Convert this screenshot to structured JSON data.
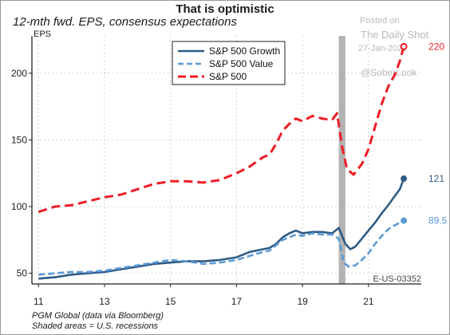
{
  "title": "That is optimistic",
  "subtitle": "12-mth fwd. EPS, consensus expectations",
  "y_unit": "EPS",
  "chart_id": "E-US-03352",
  "footer": {
    "source": "PGM Global (data via Bloomberg)",
    "shading_note": "Shaded areas = U.S. recessions"
  },
  "watermark": {
    "posted": "Posted on",
    "site": "The Daily Shot",
    "date": "27-Jan-2022",
    "handle": "@SoberLook"
  },
  "colors": {
    "growth": "#2f5b86",
    "value": "#5b9bd5",
    "sp500": "#ee1c25",
    "recession": "#b3b3b3"
  },
  "chart_data": {
    "type": "line",
    "title": "That is optimistic",
    "subtitle": "12-mth fwd. EPS, consensus expectations",
    "ylabel": "EPS",
    "xlim": [
      2010.8,
      2022.6
    ],
    "ylim": [
      42,
      228
    ],
    "x_ticks": [
      2011,
      2013,
      2015,
      2017,
      2019,
      2021
    ],
    "x_tick_labels": [
      "11",
      "13",
      "15",
      "17",
      "19",
      "21"
    ],
    "y_ticks": [
      50,
      100,
      150,
      200
    ],
    "grid": "dotted",
    "legend_position": "top-center",
    "recessions": [
      [
        2020.1,
        2020.3
      ]
    ],
    "end_labels": [
      {
        "series": "S&P 500",
        "x": 2022.07,
        "y": 220,
        "label": "220"
      },
      {
        "series": "S&P 500 Growth",
        "x": 2022.07,
        "y": 121,
        "label": "121"
      },
      {
        "series": "S&P 500 Value",
        "x": 2022.07,
        "y": 89.5,
        "label": "89.5"
      }
    ],
    "series": [
      {
        "name": "S&P 500 Growth",
        "style": "solid",
        "color": "#2f5b86",
        "points": [
          [
            2011.0,
            46
          ],
          [
            2011.5,
            47
          ],
          [
            2012.0,
            49
          ],
          [
            2012.5,
            50
          ],
          [
            2013.0,
            51
          ],
          [
            2013.5,
            53
          ],
          [
            2014.0,
            55
          ],
          [
            2014.5,
            57
          ],
          [
            2015.0,
            58
          ],
          [
            2015.5,
            59
          ],
          [
            2016.0,
            59
          ],
          [
            2016.5,
            60
          ],
          [
            2017.0,
            62
          ],
          [
            2017.4,
            66
          ],
          [
            2017.8,
            68
          ],
          [
            2018.0,
            69
          ],
          [
            2018.2,
            72
          ],
          [
            2018.4,
            77
          ],
          [
            2018.6,
            80
          ],
          [
            2018.8,
            82
          ],
          [
            2019.0,
            80
          ],
          [
            2019.3,
            81
          ],
          [
            2019.6,
            81
          ],
          [
            2019.9,
            80
          ],
          [
            2020.1,
            84
          ],
          [
            2020.3,
            72
          ],
          [
            2020.45,
            68
          ],
          [
            2020.6,
            70
          ],
          [
            2020.8,
            76
          ],
          [
            2021.0,
            82
          ],
          [
            2021.2,
            88
          ],
          [
            2021.4,
            95
          ],
          [
            2021.6,
            101
          ],
          [
            2021.8,
            108
          ],
          [
            2021.95,
            113
          ],
          [
            2022.07,
            121
          ]
        ]
      },
      {
        "name": "S&P 500 Value",
        "style": "dashed",
        "color": "#5b9bd5",
        "points": [
          [
            2011.0,
            49
          ],
          [
            2011.5,
            50
          ],
          [
            2012.0,
            51
          ],
          [
            2012.5,
            51
          ],
          [
            2013.0,
            52
          ],
          [
            2013.5,
            54
          ],
          [
            2014.0,
            56
          ],
          [
            2014.5,
            58
          ],
          [
            2015.0,
            60
          ],
          [
            2015.5,
            59
          ],
          [
            2016.0,
            57
          ],
          [
            2016.5,
            58
          ],
          [
            2017.0,
            60
          ],
          [
            2017.4,
            63
          ],
          [
            2017.8,
            66
          ],
          [
            2018.0,
            67
          ],
          [
            2018.2,
            71
          ],
          [
            2018.4,
            75
          ],
          [
            2018.6,
            77
          ],
          [
            2018.8,
            79
          ],
          [
            2019.0,
            78
          ],
          [
            2019.3,
            80
          ],
          [
            2019.6,
            79
          ],
          [
            2019.9,
            79
          ],
          [
            2020.1,
            76
          ],
          [
            2020.25,
            58
          ],
          [
            2020.4,
            55
          ],
          [
            2020.6,
            56
          ],
          [
            2020.8,
            60
          ],
          [
            2021.0,
            65
          ],
          [
            2021.2,
            72
          ],
          [
            2021.4,
            78
          ],
          [
            2021.6,
            83
          ],
          [
            2021.8,
            86
          ],
          [
            2021.95,
            88
          ],
          [
            2022.07,
            89.5
          ]
        ]
      },
      {
        "name": "S&P 500",
        "style": "dashed",
        "color": "#ee1c25",
        "points": [
          [
            2011.0,
            96
          ],
          [
            2011.5,
            100
          ],
          [
            2012.0,
            101
          ],
          [
            2012.5,
            104
          ],
          [
            2013.0,
            107
          ],
          [
            2013.5,
            109
          ],
          [
            2014.0,
            113
          ],
          [
            2014.5,
            117
          ],
          [
            2015.0,
            119
          ],
          [
            2015.5,
            119
          ],
          [
            2016.0,
            118
          ],
          [
            2016.5,
            120
          ],
          [
            2017.0,
            125
          ],
          [
            2017.4,
            130
          ],
          [
            2017.8,
            137
          ],
          [
            2018.0,
            139
          ],
          [
            2018.2,
            147
          ],
          [
            2018.4,
            157
          ],
          [
            2018.6,
            162
          ],
          [
            2018.8,
            166
          ],
          [
            2019.0,
            164
          ],
          [
            2019.3,
            168
          ],
          [
            2019.6,
            166
          ],
          [
            2019.9,
            165
          ],
          [
            2020.05,
            170
          ],
          [
            2020.2,
            145
          ],
          [
            2020.35,
            128
          ],
          [
            2020.55,
            124
          ],
          [
            2020.8,
            132
          ],
          [
            2021.0,
            143
          ],
          [
            2021.2,
            160
          ],
          [
            2021.4,
            177
          ],
          [
            2021.6,
            190
          ],
          [
            2021.8,
            199
          ],
          [
            2021.95,
            209
          ],
          [
            2022.07,
            220
          ]
        ]
      }
    ]
  }
}
